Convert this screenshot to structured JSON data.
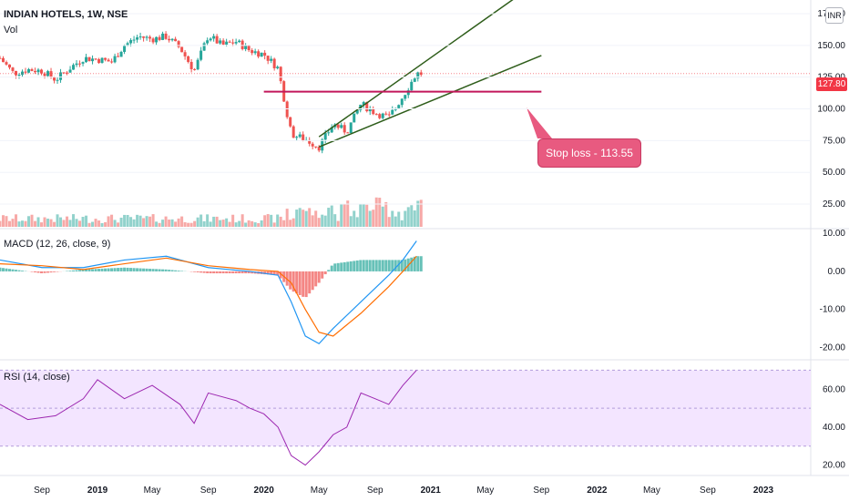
{
  "header": {
    "title": "INDIAN HOTELS, 1W, NSE",
    "vol_label": "Vol",
    "macd_label": "MACD (12, 26, close, 9)",
    "rsi_label": "RSI (14, close)",
    "currency": "INR",
    "last_price": "127.80",
    "annotation": "Stop loss - 113.55"
  },
  "colors": {
    "up": "#26a69a",
    "down": "#ef5350",
    "macd_line": "#2196f3",
    "signal_line": "#ff6d00",
    "rsi_line": "#9c27b0",
    "rsi_band": "#f3e5ff",
    "channel": "#2e5d1a",
    "stop_line": "#c2185b",
    "callout": "#e85a80",
    "last_price": "#f23645"
  },
  "chart_data": [
    {
      "type": "candlestick",
      "pane": "price",
      "title": "INDIAN HOTELS, 1W, NSE",
      "y_ticks": [
        25,
        50,
        75,
        100,
        125,
        150,
        175
      ],
      "y_tick_labels": [
        "25.00",
        "50.00",
        "75.00",
        "100.00",
        "125.00",
        "150.00",
        "175.00"
      ],
      "ylim": [
        15,
        180
      ],
      "scale": "linear",
      "x_tick_labels": [
        "Sep",
        "2019",
        "May",
        "Sep",
        "2020",
        "May",
        "Sep",
        "2021",
        "May",
        "Sep",
        "2022",
        "May",
        "Sep",
        "2023"
      ],
      "x_ticks": [
        "2018-09-01",
        "2019-01-01",
        "2019-05-01",
        "2019-09-01",
        "2020-01-01",
        "2020-05-01",
        "2020-09-01",
        "2021-01-01",
        "2021-05-01",
        "2021-09-01",
        "2022-01-01",
        "2022-05-01",
        "2022-09-01",
        "2023-01-01"
      ],
      "xlim": [
        "2018-06-01",
        "2023-04-15"
      ],
      "last_price": 127.8,
      "stop_loss": 113.55,
      "ohlc_weekly_closes": [
        [
          "2018-06-01",
          140
        ],
        [
          "2018-07-01",
          128
        ],
        [
          "2018-08-01",
          131
        ],
        [
          "2018-09-01",
          130
        ],
        [
          "2018-10-01",
          123
        ],
        [
          "2018-11-01",
          132
        ],
        [
          "2018-12-01",
          140
        ],
        [
          "2019-01-01",
          139
        ],
        [
          "2019-02-01",
          137
        ],
        [
          "2019-03-01",
          150
        ],
        [
          "2019-04-01",
          157
        ],
        [
          "2019-05-01",
          155
        ],
        [
          "2019-06-01",
          157
        ],
        [
          "2019-07-01",
          148
        ],
        [
          "2019-08-01",
          130
        ],
        [
          "2019-09-01",
          158
        ],
        [
          "2019-10-01",
          150
        ],
        [
          "2019-11-01",
          153
        ],
        [
          "2019-12-01",
          146
        ],
        [
          "2020-01-01",
          143
        ],
        [
          "2020-02-01",
          132
        ],
        [
          "2020-03-01",
          80
        ],
        [
          "2020-04-01",
          76
        ],
        [
          "2020-05-01",
          70
        ],
        [
          "2020-06-01",
          88
        ],
        [
          "2020-07-01",
          82
        ],
        [
          "2020-08-01",
          104
        ],
        [
          "2020-09-01",
          97
        ],
        [
          "2020-10-01",
          93
        ],
        [
          "2020-11-01",
          110
        ],
        [
          "2020-12-01",
          127.8
        ]
      ],
      "channel_lines": [
        {
          "from": [
            "2020-05-01",
            78
          ],
          "to": [
            "2021-09-01",
            202
          ]
        },
        {
          "from": [
            "2020-05-01",
            70
          ],
          "to": [
            "2021-09-01",
            142
          ]
        }
      ],
      "horizontal_line": {
        "from": "2020-01-01",
        "to": "2021-09-01",
        "value": 113.55
      }
    },
    {
      "type": "bar",
      "pane": "volume",
      "series": [
        {
          "name": "Vol",
          "note": "weekly volume histogram colored by candle direction"
        }
      ]
    },
    {
      "type": "line",
      "pane": "macd",
      "title": "MACD (12, 26, close, 9)",
      "y_ticks": [
        -20,
        -10,
        0,
        10
      ],
      "y_tick_labels": [
        "-20.00",
        "-10.00",
        "0.00",
        "10.00"
      ],
      "ylim": [
        -23,
        11
      ],
      "points": [
        [
          "2018-06-01",
          3,
          2
        ],
        [
          "2018-09-01",
          1,
          1.5
        ],
        [
          "2018-12-01",
          1,
          0.5
        ],
        [
          "2019-03-01",
          3,
          2
        ],
        [
          "2019-06-01",
          4,
          3.5
        ],
        [
          "2019-09-01",
          1,
          1.5
        ],
        [
          "2019-12-01",
          0,
          0.5
        ],
        [
          "2020-02-01",
          -1,
          0
        ],
        [
          "2020-03-01",
          -8,
          -3
        ],
        [
          "2020-04-01",
          -17,
          -10
        ],
        [
          "2020-05-01",
          -19,
          -16
        ],
        [
          "2020-06-01",
          -15,
          -17
        ],
        [
          "2020-08-01",
          -8,
          -11
        ],
        [
          "2020-10-01",
          -1,
          -4
        ],
        [
          "2020-11-01",
          3,
          0
        ],
        [
          "2020-12-01",
          8,
          4
        ]
      ]
    },
    {
      "type": "line",
      "pane": "rsi",
      "title": "RSI (14, close)",
      "y_ticks": [
        20,
        40,
        60
      ],
      "y_tick_labels": [
        "20.00",
        "40.00",
        "60.00"
      ],
      "ylim": [
        15,
        75
      ],
      "band": [
        30,
        70
      ],
      "points": [
        [
          "2018-06-01",
          52
        ],
        [
          "2018-08-01",
          44
        ],
        [
          "2018-10-01",
          46
        ],
        [
          "2018-12-01",
          55
        ],
        [
          "2019-01-01",
          65
        ],
        [
          "2019-03-01",
          55
        ],
        [
          "2019-05-01",
          62
        ],
        [
          "2019-07-01",
          52
        ],
        [
          "2019-08-01",
          42
        ],
        [
          "2019-09-01",
          58
        ],
        [
          "2019-11-01",
          54
        ],
        [
          "2019-12-01",
          50
        ],
        [
          "2020-01-01",
          47
        ],
        [
          "2020-02-01",
          40
        ],
        [
          "2020-03-01",
          25
        ],
        [
          "2020-04-01",
          20
        ],
        [
          "2020-05-01",
          27
        ],
        [
          "2020-06-01",
          36
        ],
        [
          "2020-07-01",
          40
        ],
        [
          "2020-08-01",
          58
        ],
        [
          "2020-09-01",
          55
        ],
        [
          "2020-10-01",
          52
        ],
        [
          "2020-11-01",
          62
        ],
        [
          "2020-12-01",
          70
        ]
      ]
    }
  ]
}
